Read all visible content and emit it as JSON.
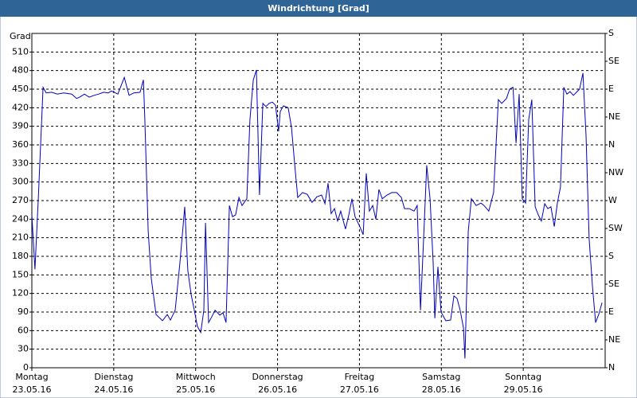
{
  "chart_data": {
    "type": "line",
    "title": "Windrichtung [Grad]",
    "ylabel": "Grad",
    "xlim": [
      0,
      168
    ],
    "xticks": [
      {
        "value": 0,
        "label": "Montag"
      },
      {
        "value": 24,
        "label": "Dienstag"
      },
      {
        "value": 48,
        "label": "Mittwoch"
      },
      {
        "value": 72,
        "label": "Donnerstag"
      },
      {
        "value": 96,
        "label": "Freitag"
      },
      {
        "value": 120,
        "label": "Samstag"
      },
      {
        "value": 144,
        "label": "Sonntag"
      }
    ],
    "xtick_dates": [
      "23.05.16",
      "24.05.16",
      "25.05.16",
      "26.05.16",
      "27.05.16",
      "28.05.16",
      "29.05.16"
    ],
    "ylim": [
      0,
      540
    ],
    "yticks": [
      0,
      30,
      60,
      90,
      120,
      150,
      180,
      210,
      240,
      270,
      300,
      330,
      360,
      390,
      420,
      450,
      480,
      510
    ],
    "y2lim": [
      0,
      540
    ],
    "y2ticks": [
      {
        "value": 0,
        "label": "N"
      },
      {
        "value": 45,
        "label": "NE"
      },
      {
        "value": 90,
        "label": "E"
      },
      {
        "value": 135,
        "label": "SE"
      },
      {
        "value": 180,
        "label": "S"
      },
      {
        "value": 225,
        "label": "SW"
      },
      {
        "value": 270,
        "label": "W"
      },
      {
        "value": 315,
        "label": "NW"
      },
      {
        "value": 360,
        "label": "N"
      },
      {
        "value": 405,
        "label": "NE"
      },
      {
        "value": 450,
        "label": "E"
      },
      {
        "value": 495,
        "label": "SE"
      },
      {
        "value": 540,
        "label": "S"
      }
    ],
    "grid": true,
    "series": [
      {
        "color": "#0000c0",
        "x": [
          0,
          0.9,
          1.9,
          3.3,
          4.2,
          5.8,
          7.5,
          9.3,
          11.7,
          13.1,
          14.0,
          15.4,
          16.8,
          18.2,
          19.6,
          21.0,
          22.4,
          23.3,
          25.2,
          26.1,
          27.1,
          28.5,
          29.9,
          31.7,
          32.7,
          33.1,
          34.1,
          35.0,
          36.4,
          38.3,
          39.7,
          40.6,
          42.0,
          43.4,
          44.8,
          45.7,
          46.7,
          47.6,
          48.5,
          49.5,
          50.4,
          50.9,
          51.8,
          52.7,
          53.7,
          55.1,
          56.0,
          56.9,
          57.9,
          58.8,
          59.7,
          60.7,
          61.6,
          63.0,
          63.9,
          64.9,
          65.8,
          66.7,
          67.7,
          68.6,
          69.5,
          70.5,
          71.4,
          72.3,
          72.8,
          73.7,
          75.1,
          76.1,
          77.0,
          77.9,
          79.3,
          80.7,
          82.1,
          83.5,
          84.9,
          85.9,
          86.8,
          87.7,
          88.7,
          89.6,
          90.5,
          91.9,
          92.9,
          93.8,
          94.7,
          96.1,
          97.1,
          98.0,
          98.9,
          99.9,
          100.8,
          101.7,
          102.7,
          104.1,
          105.5,
          106.9,
          108.3,
          109.2,
          110.6,
          112.0,
          112.9,
          113.9,
          114.8,
          115.7,
          116.7,
          117.6,
          118.1,
          119.0,
          119.9,
          121.3,
          122.7,
          123.7,
          124.6,
          125.5,
          126.5,
          126.9,
          127.9,
          128.8,
          130.2,
          131.6,
          132.5,
          133.9,
          135.3,
          136.7,
          137.7,
          139.1,
          140.0,
          141.0,
          141.9,
          142.8,
          143.7,
          144.7,
          145.6,
          146.5,
          147.5,
          148.4,
          149.3,
          150.3,
          151.2,
          152.1,
          153.1,
          154.0,
          154.9,
          155.9,
          156.8,
          157.7,
          158.7,
          159.6,
          160.5,
          161.5,
          162.4,
          163.3,
          164.3,
          165.2,
          166.1,
          167.1
        ],
        "values": [
          247,
          159,
          273,
          453,
          444,
          445,
          442,
          444,
          442,
          435,
          437,
          442,
          437,
          440,
          442,
          445,
          444,
          447,
          442,
          455,
          469,
          440,
          444,
          445,
          465,
          401,
          221,
          144,
          86,
          76,
          86,
          77,
          93,
          170,
          260,
          157,
          118,
          93,
          67,
          57,
          93,
          234,
          73,
          82,
          93,
          85,
          89,
          73,
          262,
          244,
          247,
          275,
          262,
          273,
          401,
          465,
          481,
          279,
          427,
          422,
          427,
          429,
          424,
          382,
          414,
          423,
          420,
          388,
          330,
          275,
          283,
          280,
          267,
          276,
          279,
          265,
          298,
          249,
          257,
          237,
          253,
          224,
          247,
          273,
          244,
          228,
          215,
          314,
          253,
          262,
          240,
          288,
          273,
          279,
          283,
          283,
          275,
          257,
          257,
          253,
          262,
          93,
          208,
          327,
          273,
          170,
          80,
          163,
          90,
          76,
          77,
          116,
          112,
          93,
          64,
          15,
          221,
          273,
          262,
          266,
          262,
          253,
          283,
          433,
          427,
          435,
          450,
          453,
          363,
          442,
          273,
          266,
          401,
          433,
          260,
          247,
          237,
          265,
          257,
          260,
          228,
          266,
          292,
          453,
          442,
          446,
          440,
          445,
          450,
          476,
          375,
          208,
          131,
          73,
          86,
          105
        ]
      }
    ]
  }
}
